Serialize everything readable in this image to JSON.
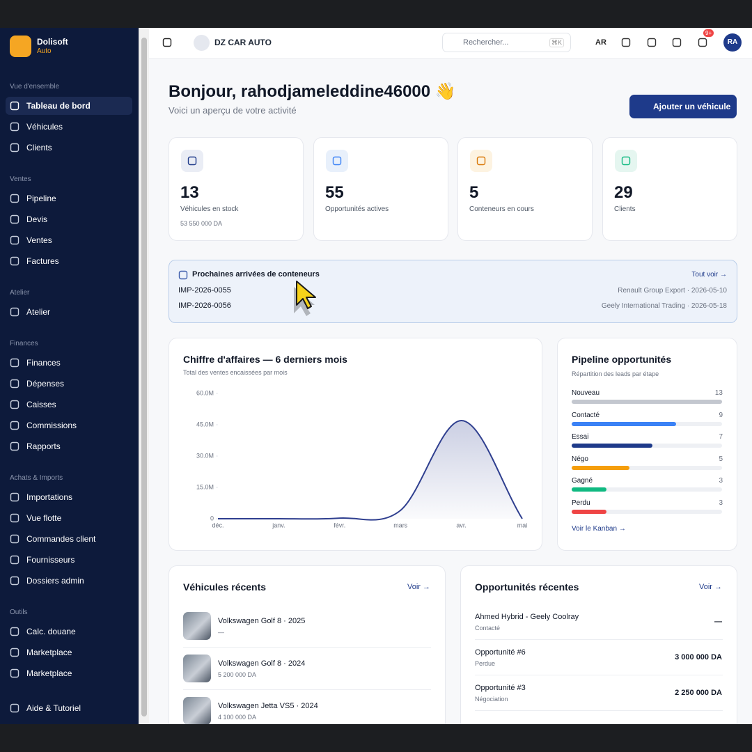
{
  "sidebar": {
    "brand": "Dolisoft",
    "brand_sub": "Auto",
    "sections": [
      {
        "title": "Vue d'ensemble",
        "items": [
          "Tableau de bord",
          "Véhicules",
          "Clients"
        ]
      },
      {
        "title": "Ventes",
        "items": [
          "Pipeline",
          "Devis",
          "Ventes",
          "Factures"
        ]
      },
      {
        "title": "Atelier",
        "items": [
          "Atelier"
        ]
      },
      {
        "title": "Finances",
        "items": [
          "Finances",
          "Dépenses",
          "Caisses",
          "Commissions",
          "Rapports"
        ]
      },
      {
        "title": "Achats & Imports",
        "items": [
          "Importations",
          "Vue flotte",
          "Commandes client",
          "Fournisseurs",
          "Dossiers admin"
        ]
      },
      {
        "title": "Outils",
        "items": [
          "Calc. douane",
          "Marketplace",
          "Marketplace"
        ]
      }
    ],
    "footer": "Aide & Tutoriel"
  },
  "topbar": {
    "company": "DZ CAR AUTO",
    "search": "Rechercher...",
    "shortcut": "⌘K",
    "lang": "AR",
    "badge": "9+",
    "avatar": "RA"
  },
  "header": {
    "title": "Bonjour, rahodjameleddine46000 👋",
    "subtitle": "Voici un aperçu de votre activité",
    "button": "Ajouter un véhicule"
  },
  "stats": [
    {
      "value": 13,
      "label": "Véhicules en stock",
      "note": "53 550 000 DA"
    },
    {
      "value": 55,
      "label": "Opportunités actives"
    },
    {
      "value": 5,
      "label": "Conteneurs en cours"
    },
    {
      "value": 29,
      "label": "Clients"
    }
  ],
  "arrivals": {
    "title": "Prochaines arrivées de conteneurs",
    "link": "Tout voir →",
    "rows": [
      {
        "ref": "IMP-2026-0055",
        "info": "Renault Group Export · 2026-05-10"
      },
      {
        "ref": "IMP-2026-0056",
        "info": "Geely International Trading · 2026-05-18"
      }
    ]
  },
  "chart_data": {
    "type": "line",
    "title": "Chiffre d'affaires — 6 derniers mois",
    "subtitle": "Total des ventes encaissées par mois",
    "categories": [
      "déc.",
      "janv.",
      "févr.",
      "mars",
      "avr.",
      "mai"
    ],
    "values": [
      0,
      0,
      300000,
      4000000,
      47000000,
      0
    ],
    "color": "#2f3f8f",
    "ylim": [
      0,
      60000000
    ],
    "yticks": [
      0,
      {
        "value": 15000000,
        "label": "15.0M"
      },
      {
        "value": 30000000,
        "label": "30.0M"
      },
      {
        "value": 45000000,
        "label": "45.0M"
      },
      {
        "value": 60000000,
        "label": "60.0M"
      }
    ]
  },
  "pipeline": {
    "title": "Pipeline opportunités",
    "subtitle": "Répartition des leads par étape",
    "stages": [
      {
        "name": "Nouveau",
        "value": 13,
        "color": "#c3c7cf"
      },
      {
        "name": "Contacté",
        "value": 9,
        "color": "#3b82f6"
      },
      {
        "name": "Essai",
        "value": 7,
        "color": "#1e3a8a"
      },
      {
        "name": "Négo",
        "value": 5,
        "color": "#f59e0b"
      },
      {
        "name": "Gagné",
        "value": 3,
        "color": "#10b981"
      },
      {
        "name": "Perdu",
        "value": 3,
        "color": "#ef4444"
      }
    ],
    "link": "Voir le Kanban →"
  },
  "vehicles": {
    "title": "Véhicules récents",
    "link": "Voir →",
    "items": [
      {
        "name": "Volkswagen Golf 8 · 2025",
        "price": "—"
      },
      {
        "name": "Volkswagen Golf 8 · 2024",
        "price": "5 200 000 DA"
      },
      {
        "name": "Volkswagen Jetta VS5 · 2024",
        "price": "4 100 000 DA"
      }
    ]
  },
  "opportunities": {
    "title": "Opportunités récentes",
    "link": "Voir →",
    "items": [
      {
        "name": "Ahmed Hybrid - Geely Coolray",
        "stage": "Contacté",
        "amount": "—"
      },
      {
        "name": "Opportunité #6",
        "stage": "Perdue",
        "amount": "3 000 000 DA"
      },
      {
        "name": "Opportunité #3",
        "stage": "Négociation",
        "amount": "2 250 000 DA"
      }
    ]
  }
}
